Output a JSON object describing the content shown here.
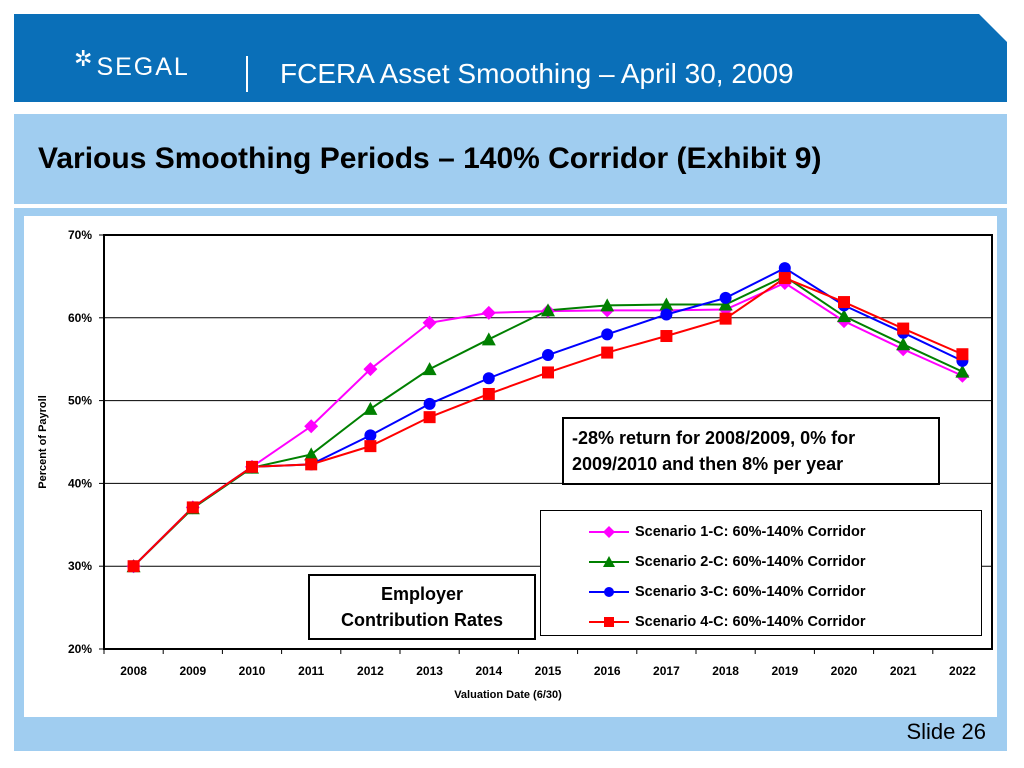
{
  "header": {
    "logo_text": "SEGAL",
    "logo_icon": "star-mark-icon",
    "title": "FCERA Asset Smoothing – April 30, 2009"
  },
  "slide": {
    "title": "Various Smoothing Periods – 140% Corridor (Exhibit 9)",
    "number_label": "Slide 26"
  },
  "annotations": {
    "note_line1": "-28% return for 2008/2009, 0% for",
    "note_line2": "2009/2010 and then 8% per year",
    "employer_line1": "Employer",
    "employer_line2": "Contribution Rates"
  },
  "colors": {
    "header_bg": "#0a6fb8",
    "band_bg": "#a0cdf0",
    "series_magenta": "#ff00ff",
    "series_green": "#008000",
    "series_blue": "#0000ff",
    "series_red": "#ff0000"
  },
  "chart_data": {
    "type": "line",
    "title": "",
    "xlabel": "Valuation Date (6/30)",
    "ylabel": "Percent of Payroll",
    "ylim": [
      20,
      70
    ],
    "yticks": [
      20,
      30,
      40,
      50,
      60,
      70
    ],
    "ytick_labels": [
      "20%",
      "30%",
      "40%",
      "50%",
      "60%",
      "70%"
    ],
    "grid": true,
    "legend_position": "bottom-right",
    "categories": [
      "2008",
      "2009",
      "2010",
      "2011",
      "2012",
      "2013",
      "2014",
      "2015",
      "2016",
      "2017",
      "2018",
      "2019",
      "2020",
      "2021",
      "2022"
    ],
    "series": [
      {
        "name": "Scenario 1-C: 60%-140% Corridor",
        "color": "#ff00ff",
        "marker": "diamond",
        "values": [
          30.0,
          37.1,
          42.0,
          46.9,
          53.8,
          59.4,
          60.6,
          60.8,
          60.9,
          60.9,
          61.0,
          64.2,
          59.6,
          56.2,
          53.0
        ]
      },
      {
        "name": "Scenario 2-C: 60%-140% Corridor",
        "color": "#008000",
        "marker": "triangle",
        "values": [
          30.0,
          37.0,
          41.9,
          43.5,
          49.0,
          53.8,
          57.4,
          60.9,
          61.5,
          61.6,
          61.6,
          65.0,
          60.2,
          56.8,
          53.5
        ]
      },
      {
        "name": "Scenario 3-C: 60%-140% Corridor",
        "color": "#0000ff",
        "marker": "circle",
        "values": [
          30.0,
          37.1,
          42.0,
          42.3,
          45.8,
          49.6,
          52.7,
          55.5,
          58.0,
          60.4,
          62.4,
          66.0,
          61.5,
          58.2,
          54.8
        ]
      },
      {
        "name": "Scenario 4-C: 60%-140% Corridor",
        "color": "#ff0000",
        "marker": "square",
        "values": [
          30.0,
          37.1,
          42.0,
          42.3,
          44.5,
          48.0,
          50.8,
          53.4,
          55.8,
          57.8,
          59.9,
          64.8,
          61.9,
          58.7,
          55.6
        ]
      }
    ]
  }
}
